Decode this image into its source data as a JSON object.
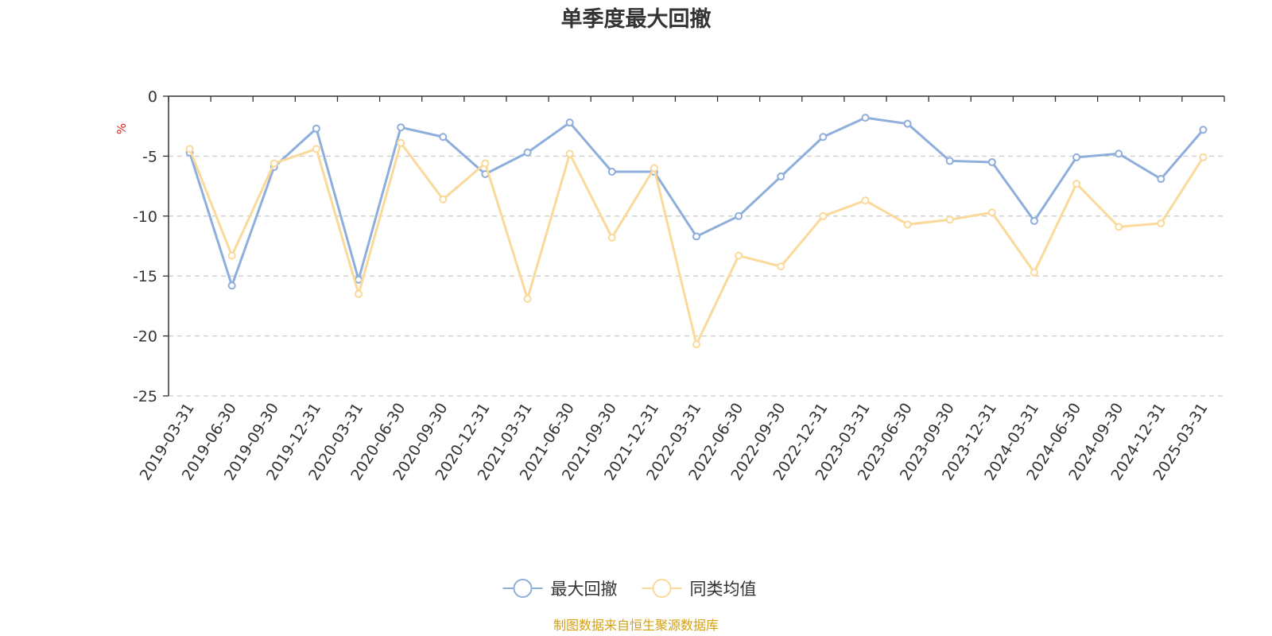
{
  "chart_data": {
    "type": "line",
    "title": "单季度最大回撤",
    "ylabel": "%",
    "xlabel": "",
    "ylim": [
      -25,
      0
    ],
    "yticks": [
      0,
      -5,
      -10,
      -15,
      -20,
      -25
    ],
    "grid": "horizontal dashed",
    "legend_position": "bottom",
    "categories": [
      "2019-03-31",
      "2019-06-30",
      "2019-09-30",
      "2019-12-31",
      "2020-03-31",
      "2020-06-30",
      "2020-09-30",
      "2020-12-31",
      "2021-03-31",
      "2021-06-30",
      "2021-09-30",
      "2021-12-31",
      "2022-03-31",
      "2022-06-30",
      "2022-09-30",
      "2022-12-31",
      "2023-03-31",
      "2023-06-30",
      "2023-09-30",
      "2023-12-31",
      "2024-03-31",
      "2024-06-30",
      "2024-09-30",
      "2024-12-31",
      "2025-03-31"
    ],
    "series": [
      {
        "name": "最大回撤",
        "color": "#8eaedb",
        "values": [
          -4.7,
          -15.8,
          -5.9,
          -2.7,
          -15.3,
          -2.6,
          -3.4,
          -6.5,
          -4.7,
          -2.2,
          -6.3,
          -6.3,
          -11.7,
          -10.0,
          -6.7,
          -3.4,
          -1.8,
          -2.3,
          -5.4,
          -5.5,
          -10.4,
          -5.1,
          -4.8,
          -6.9,
          -2.8
        ]
      },
      {
        "name": "同类均值",
        "color": "#fbd99a",
        "values": [
          -4.4,
          -13.3,
          -5.6,
          -4.4,
          -16.5,
          -3.9,
          -8.6,
          -5.6,
          -16.9,
          -4.8,
          -11.8,
          -6.0,
          -20.7,
          -13.3,
          -14.2,
          -10.0,
          -8.7,
          -10.7,
          -10.3,
          -9.7,
          -14.7,
          -7.3,
          -10.9,
          -10.6,
          -5.1
        ]
      }
    ]
  },
  "footer": {
    "source": "制图数据来自恒生聚源数据库"
  }
}
